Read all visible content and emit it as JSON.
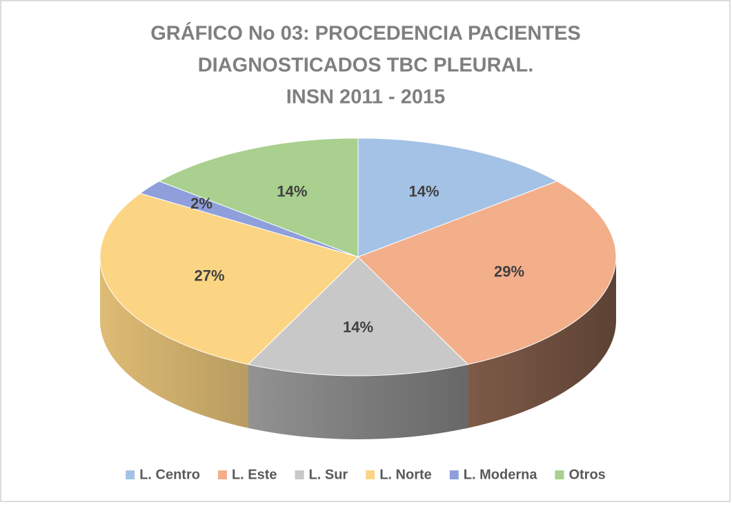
{
  "chart_data": {
    "type": "pie3d",
    "title": [
      "GRÁFICO  No 03: PROCEDENCIA  PACIENTES",
      "DIAGNOSTICADOS  TBC PLEURAL.",
      "INSN 2011 - 2015"
    ],
    "categories": [
      "L. Centro",
      "L. Este",
      "L. Sur",
      "L. Norte",
      "L. Moderna",
      "Otros"
    ],
    "values": [
      14,
      29,
      14,
      27,
      2,
      14
    ],
    "value_labels": [
      "14%",
      "29%",
      "14%",
      "27%",
      "2%",
      "14%"
    ],
    "colors": [
      "#a4c2e6",
      "#f3ae8a",
      "#c8c8c8",
      "#fcd584",
      "#8e9fdb",
      "#a9d08e"
    ],
    "legend": "bottom"
  }
}
